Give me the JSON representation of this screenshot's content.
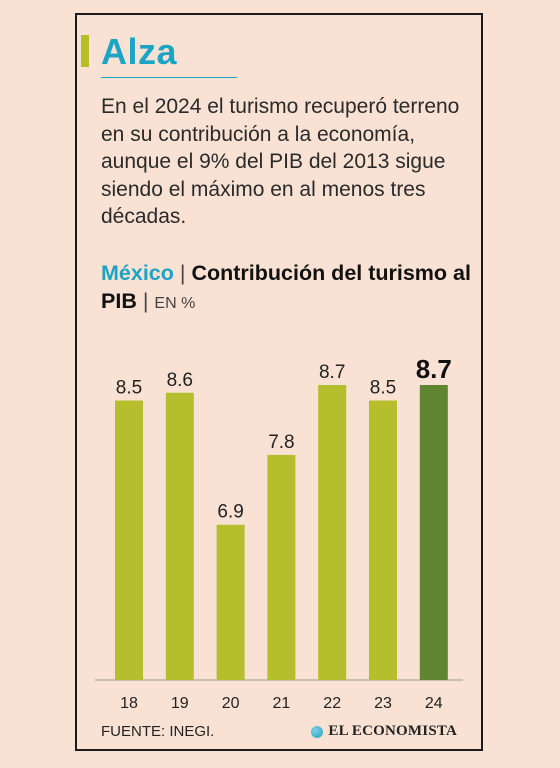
{
  "header": {
    "title": "Alza",
    "intro": "En el 2024 el turismo recuperó terreno en su contribución a la economía, aunque el 9% del PIB del 2013 sigue siendo el máximo en al menos tres décadas."
  },
  "chart_heading": {
    "country": "México",
    "separator": "|",
    "subject": "Contribución del turismo al PIB",
    "unit_separator": "|",
    "unit": "EN %"
  },
  "colors": {
    "accent": "#1ca4c4",
    "bar": "#b5bf2e",
    "bar_highlight": "#5f8530"
  },
  "chart_data": {
    "type": "bar",
    "title": "México | Contribución del turismo al PIB",
    "ylabel": "EN %",
    "categories": [
      "18",
      "19",
      "20",
      "21",
      "22",
      "23",
      "24"
    ],
    "values": [
      8.5,
      8.6,
      6.9,
      7.8,
      8.7,
      8.5,
      8.7
    ],
    "value_labels": [
      "8.5",
      "8.6",
      "6.9",
      "7.8",
      "8.7",
      "8.5",
      "8.7"
    ],
    "highlight_index": 6,
    "ylim": [
      4.9,
      8.7
    ],
    "grid": false,
    "legend": "none"
  },
  "footer": {
    "source": "FUENTE: INEGI.",
    "brand": "EL ECONOMISTA",
    "brand_icon": "el-economista-logo-icon"
  }
}
